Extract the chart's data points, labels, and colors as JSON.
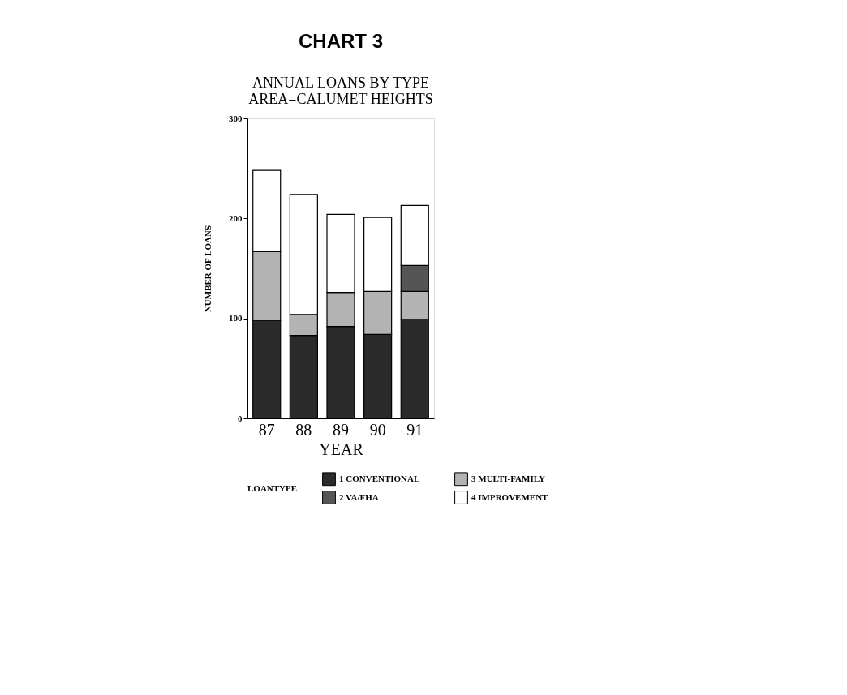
{
  "chart_data": {
    "type": "bar",
    "title": "CHART 3",
    "subtitle": [
      "ANNUAL LOANS BY TYPE",
      "AREA=CALUMET HEIGHTS"
    ],
    "xlabel": "YEAR",
    "ylabel": "NUMBER OF LOANS",
    "legend_title": "LOANTYPE",
    "categories": [
      "87",
      "88",
      "89",
      "90",
      "91"
    ],
    "series": [
      {
        "name": "1 CONVENTIONAL",
        "color": "#2b2b2b",
        "values": [
          98,
          83,
          92,
          84,
          99
        ]
      },
      {
        "name": "3 MULTI-FAMILY",
        "color": "#b3b3b3",
        "values": [
          69,
          21,
          34,
          43,
          28
        ]
      },
      {
        "name": "2 VA/FHA",
        "color": "#555555",
        "values": [
          null,
          null,
          null,
          null,
          26
        ]
      },
      {
        "name": "4 IMPROVEMENT",
        "color": "#ffffff",
        "values": [
          81,
          120,
          78,
          74,
          60
        ]
      }
    ],
    "stacked": true,
    "ylim": [
      0,
      300
    ],
    "yticks": [
      0,
      100,
      200,
      300
    ],
    "grid": false,
    "legend": "bottom"
  }
}
